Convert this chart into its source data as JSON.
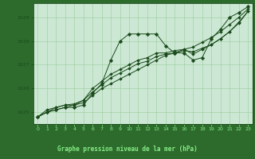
{
  "bg_color": "#b8d8c0",
  "plot_bg_color": "#cce8d4",
  "bottom_bg_color": "#2d6b2d",
  "grid_color": "#99cc99",
  "line_color": "#1a4a1a",
  "marker_color": "#1a4a1a",
  "label_color": "#88cc88",
  "bottom_text_color": "#88ee88",
  "xlabel": "Graphe pression niveau de la mer (hPa)",
  "ylim": [
    1024.5,
    1029.6
  ],
  "xlim": [
    -0.5,
    23.5
  ],
  "yticks": [
    1025,
    1026,
    1027,
    1028,
    1029
  ],
  "xticks": [
    0,
    1,
    2,
    3,
    4,
    5,
    6,
    7,
    8,
    9,
    10,
    11,
    12,
    13,
    14,
    15,
    16,
    17,
    18,
    19,
    20,
    21,
    22,
    23
  ],
  "series": [
    [
      1024.8,
      1025.0,
      1025.1,
      1025.2,
      1025.2,
      1025.3,
      1025.8,
      1026.2,
      1027.2,
      1028.0,
      1028.3,
      1028.3,
      1028.3,
      1028.3,
      1027.8,
      1027.5,
      1027.5,
      1027.2,
      1027.3,
      1028.1,
      1028.5,
      1029.0,
      1029.2,
      1029.45
    ],
    [
      1024.8,
      1025.0,
      1025.1,
      1025.2,
      1025.3,
      1025.4,
      1025.7,
      1026.0,
      1026.2,
      1026.4,
      1026.6,
      1026.8,
      1027.0,
      1027.2,
      1027.4,
      1027.5,
      1027.65,
      1027.75,
      1027.95,
      1028.15,
      1028.4,
      1028.7,
      1029.0,
      1029.35
    ],
    [
      1024.8,
      1025.0,
      1025.2,
      1025.3,
      1025.35,
      1025.5,
      1025.85,
      1026.15,
      1026.45,
      1026.65,
      1026.85,
      1027.05,
      1027.15,
      1027.35,
      1027.45,
      1027.5,
      1027.6,
      1027.55,
      1027.7,
      1027.85,
      1028.1,
      1028.4,
      1028.75,
      1029.25
    ],
    [
      1024.8,
      1025.1,
      1025.2,
      1025.3,
      1025.3,
      1025.5,
      1026.0,
      1026.3,
      1026.6,
      1026.8,
      1027.0,
      1027.2,
      1027.3,
      1027.5,
      1027.5,
      1027.6,
      1027.65,
      1027.45,
      1027.65,
      1027.85,
      1028.1,
      1028.4,
      1028.8,
      1029.25
    ]
  ]
}
